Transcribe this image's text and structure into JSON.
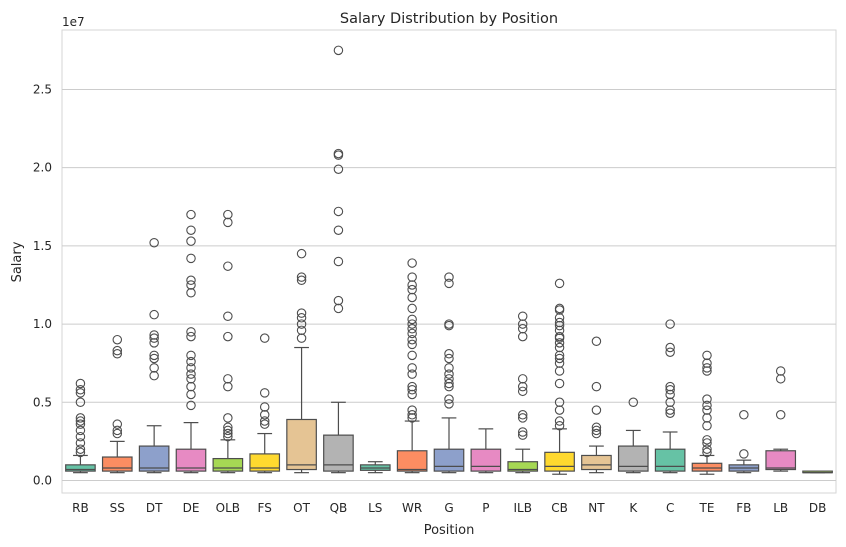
{
  "chart_data": {
    "type": "box",
    "title": "Salary Distribution by Position",
    "xlabel": "Position",
    "ylabel": "Salary",
    "y_offset_label": "1e7",
    "ylim": [
      -0.08,
      2.88
    ],
    "y_ticks": [
      0.0,
      0.5,
      1.0,
      1.5,
      2.0,
      2.5
    ],
    "y_tick_labels": [
      "0.0",
      "0.5",
      "1.0",
      "1.5",
      "2.0",
      "2.5"
    ],
    "grid": true,
    "unit_scale": "1e7",
    "categories": [
      "RB",
      "SS",
      "DT",
      "DE",
      "OLB",
      "FS",
      "OT",
      "QB",
      "LS",
      "WR",
      "G",
      "P",
      "ILB",
      "CB",
      "NT",
      "K",
      "C",
      "TE",
      "FB",
      "LB",
      "DB"
    ],
    "colors": [
      "#66c2a5",
      "#fc8d62",
      "#8da0cb",
      "#e78ac3",
      "#a6d854",
      "#ffd92f",
      "#e5c494",
      "#b3b3b3",
      "#66c2a5",
      "#fc8d62",
      "#8da0cb",
      "#e78ac3",
      "#a6d854",
      "#ffd92f",
      "#e5c494",
      "#b3b3b3",
      "#66c2a5",
      "#fc8d62",
      "#8da0cb",
      "#e78ac3",
      "#a6d854"
    ],
    "boxes": [
      {
        "pos": "RB",
        "whislo": 0.05,
        "q1": 0.06,
        "med": 0.07,
        "q3": 0.1,
        "whishi": 0.16,
        "fliers": [
          0.62,
          0.58,
          0.56,
          0.5,
          0.4,
          0.38,
          0.36,
          0.32,
          0.28,
          0.24,
          0.2,
          0.18
        ]
      },
      {
        "pos": "SS",
        "whislo": 0.05,
        "q1": 0.06,
        "med": 0.08,
        "q3": 0.15,
        "whishi": 0.25,
        "fliers": [
          0.9,
          0.83,
          0.81,
          0.36,
          0.32,
          0.3
        ]
      },
      {
        "pos": "DT",
        "whislo": 0.05,
        "q1": 0.06,
        "med": 0.08,
        "q3": 0.22,
        "whishi": 0.35,
        "fliers": [
          1.52,
          1.06,
          0.93,
          0.91,
          0.88,
          0.8,
          0.78,
          0.72,
          0.67
        ]
      },
      {
        "pos": "DE",
        "whislo": 0.05,
        "q1": 0.06,
        "med": 0.08,
        "q3": 0.2,
        "whishi": 0.37,
        "fliers": [
          1.7,
          1.6,
          1.53,
          1.42,
          1.28,
          1.25,
          1.2,
          0.95,
          0.92,
          0.8,
          0.76,
          0.72,
          0.68,
          0.65,
          0.6,
          0.55,
          0.48
        ]
      },
      {
        "pos": "OLB",
        "whislo": 0.05,
        "q1": 0.06,
        "med": 0.08,
        "q3": 0.14,
        "whishi": 0.26,
        "fliers": [
          1.7,
          1.65,
          1.37,
          1.05,
          0.92,
          0.65,
          0.6,
          0.4,
          0.34,
          0.32,
          0.3,
          0.28
        ]
      },
      {
        "pos": "FS",
        "whislo": 0.05,
        "q1": 0.06,
        "med": 0.08,
        "q3": 0.17,
        "whishi": 0.3,
        "fliers": [
          0.91,
          0.56,
          0.47,
          0.42,
          0.38,
          0.36
        ]
      },
      {
        "pos": "OT",
        "whislo": 0.05,
        "q1": 0.07,
        "med": 0.1,
        "q3": 0.39,
        "whishi": 0.85,
        "fliers": [
          1.45,
          1.3,
          1.28,
          1.07,
          1.04,
          1.0,
          0.96,
          0.91
        ]
      },
      {
        "pos": "QB",
        "whislo": 0.05,
        "q1": 0.06,
        "med": 0.1,
        "q3": 0.29,
        "whishi": 0.5,
        "fliers": [
          2.75,
          2.09,
          2.08,
          1.99,
          1.72,
          1.6,
          1.4,
          1.15,
          1.1
        ]
      },
      {
        "pos": "LS",
        "whislo": 0.05,
        "q1": 0.065,
        "med": 0.08,
        "q3": 0.1,
        "whishi": 0.12,
        "fliers": []
      },
      {
        "pos": "WR",
        "whislo": 0.05,
        "q1": 0.06,
        "med": 0.07,
        "q3": 0.19,
        "whishi": 0.38,
        "fliers": [
          1.39,
          1.3,
          1.25,
          1.22,
          1.17,
          1.1,
          1.03,
          1.0,
          0.97,
          0.94,
          0.9,
          0.87,
          0.8,
          0.72,
          0.68,
          0.6,
          0.58,
          0.55,
          0.45,
          0.42,
          0.4
        ]
      },
      {
        "pos": "G",
        "whislo": 0.05,
        "q1": 0.06,
        "med": 0.09,
        "q3": 0.2,
        "whishi": 0.4,
        "fliers": [
          1.3,
          1.26,
          1.0,
          0.99,
          0.81,
          0.78,
          0.72,
          0.68,
          0.65,
          0.62,
          0.6,
          0.52,
          0.49
        ]
      },
      {
        "pos": "P",
        "whislo": 0.05,
        "q1": 0.06,
        "med": 0.09,
        "q3": 0.2,
        "whishi": 0.33,
        "fliers": []
      },
      {
        "pos": "ILB",
        "whislo": 0.05,
        "q1": 0.06,
        "med": 0.07,
        "q3": 0.12,
        "whishi": 0.2,
        "fliers": [
          1.05,
          1.0,
          0.97,
          0.92,
          0.65,
          0.6,
          0.57,
          0.42,
          0.4,
          0.31,
          0.29
        ]
      },
      {
        "pos": "CB",
        "whislo": 0.04,
        "q1": 0.06,
        "med": 0.09,
        "q3": 0.18,
        "whishi": 0.33,
        "fliers": [
          1.26,
          1.1,
          1.09,
          1.04,
          1.01,
          0.99,
          0.96,
          0.92,
          0.91,
          0.88,
          0.85,
          0.8,
          0.78,
          0.75,
          0.7,
          0.62,
          0.5,
          0.45,
          0.38,
          0.35
        ]
      },
      {
        "pos": "NT",
        "whislo": 0.05,
        "q1": 0.07,
        "med": 0.1,
        "q3": 0.16,
        "whishi": 0.22,
        "fliers": [
          0.89,
          0.6,
          0.45,
          0.34,
          0.32,
          0.3
        ]
      },
      {
        "pos": "K",
        "whislo": 0.05,
        "q1": 0.06,
        "med": 0.09,
        "q3": 0.22,
        "whishi": 0.32,
        "fliers": [
          0.5
        ]
      },
      {
        "pos": "C",
        "whislo": 0.05,
        "q1": 0.06,
        "med": 0.09,
        "q3": 0.2,
        "whishi": 0.31,
        "fliers": [
          1.0,
          0.85,
          0.82,
          0.6,
          0.58,
          0.55,
          0.5,
          0.45,
          0.43
        ]
      },
      {
        "pos": "TE",
        "whislo": 0.04,
        "q1": 0.06,
        "med": 0.08,
        "q3": 0.11,
        "whishi": 0.16,
        "fliers": [
          0.8,
          0.75,
          0.72,
          0.7,
          0.52,
          0.48,
          0.45,
          0.4,
          0.35,
          0.26,
          0.24,
          0.2,
          0.18
        ]
      },
      {
        "pos": "FB",
        "whislo": 0.05,
        "q1": 0.06,
        "med": 0.08,
        "q3": 0.1,
        "whishi": 0.13,
        "fliers": [
          0.42,
          0.17
        ]
      },
      {
        "pos": "LB",
        "whislo": 0.06,
        "q1": 0.07,
        "med": 0.08,
        "q3": 0.19,
        "whishi": 0.2,
        "fliers": [
          0.7,
          0.65,
          0.42
        ]
      },
      {
        "pos": "DB",
        "whislo": 0.05,
        "q1": 0.05,
        "med": 0.05,
        "q3": 0.06,
        "whishi": 0.06,
        "fliers": []
      }
    ]
  }
}
